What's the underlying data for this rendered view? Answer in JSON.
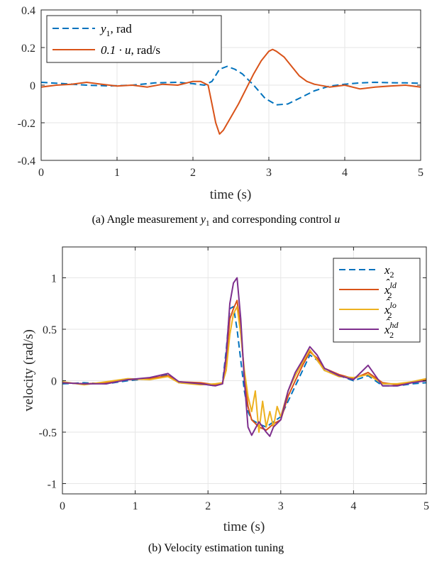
{
  "chart_data": [
    {
      "type": "line",
      "caption_prefix": "(a) Angle measurement ",
      "caption_var1": "y",
      "caption_sub1": "1",
      "caption_mid": " and corresponding control ",
      "caption_var2": "u",
      "xlabel": "time (s)",
      "ylabel": "",
      "xlim": [
        0,
        5
      ],
      "ylim": [
        -0.4,
        0.4
      ],
      "xticks": [
        "0",
        "1",
        "2",
        "3",
        "4",
        "5"
      ],
      "yticks": [
        "-0.4",
        "-0.2",
        "0",
        "0.2",
        "0.4"
      ],
      "grid": true,
      "legend_position": "top-left",
      "series": [
        {
          "legend_main": "y",
          "legend_sub": "1",
          "legend_rest": ", rad",
          "color": "#0072BD",
          "dash": true,
          "x": [
            0,
            0.3,
            0.6,
            0.9,
            1.2,
            1.5,
            1.8,
            2.0,
            2.15,
            2.25,
            2.35,
            2.45,
            2.55,
            2.65,
            2.8,
            2.95,
            3.1,
            3.25,
            3.4,
            3.6,
            3.8,
            4.0,
            4.2,
            4.4,
            4.6,
            4.8,
            5.0
          ],
          "y": [
            0.015,
            0.008,
            0.0,
            -0.004,
            0.0,
            0.012,
            0.015,
            0.008,
            0.0,
            0.02,
            0.085,
            0.1,
            0.085,
            0.06,
            0.0,
            -0.07,
            -0.105,
            -0.1,
            -0.07,
            -0.03,
            -0.005,
            0.005,
            0.012,
            0.015,
            0.013,
            0.012,
            0.01
          ]
        },
        {
          "legend_main": "0.1 · u",
          "legend_sub": "",
          "legend_rest": ", rad/s",
          "color": "#D95319",
          "dash": false,
          "x": [
            0,
            0.2,
            0.4,
            0.6,
            0.8,
            1.0,
            1.2,
            1.4,
            1.6,
            1.8,
            2.0,
            2.1,
            2.2,
            2.25,
            2.3,
            2.35,
            2.4,
            2.5,
            2.6,
            2.7,
            2.8,
            2.9,
            3.0,
            3.05,
            3.1,
            3.2,
            3.3,
            3.4,
            3.5,
            3.6,
            3.8,
            4.0,
            4.2,
            4.4,
            4.6,
            4.8,
            5.0
          ],
          "y": [
            -0.01,
            0.0,
            0.005,
            0.015,
            0.005,
            -0.005,
            0.0,
            -0.01,
            0.005,
            0.0,
            0.02,
            0.02,
            0.0,
            -0.1,
            -0.2,
            -0.26,
            -0.24,
            -0.17,
            -0.1,
            -0.02,
            0.06,
            0.13,
            0.18,
            0.19,
            0.18,
            0.15,
            0.1,
            0.05,
            0.02,
            0.005,
            -0.01,
            0.0,
            -0.02,
            -0.01,
            -0.005,
            0.0,
            -0.01
          ]
        }
      ]
    },
    {
      "type": "line",
      "caption": "(b) Velocity estimation tuning",
      "xlabel": "time (s)",
      "ylabel": "velocity (rad/s)",
      "xlim": [
        0,
        5
      ],
      "ylim": [
        -1.1,
        1.3
      ],
      "xticks": [
        "0",
        "1",
        "2",
        "3",
        "4",
        "5"
      ],
      "yticks": [
        "-1",
        "-0.5",
        "0",
        "0.5",
        "1"
      ],
      "grid": true,
      "legend_position": "top-right",
      "series": [
        {
          "legend_main": "x",
          "legend_sub": "2",
          "legend_sup": "",
          "hat": false,
          "color": "#0072BD",
          "dash": true,
          "x": [
            0,
            0.3,
            0.6,
            0.9,
            1.2,
            1.45,
            1.6,
            1.9,
            2.1,
            2.2,
            2.25,
            2.3,
            2.35,
            2.4,
            2.45,
            2.5,
            2.55,
            2.6,
            2.7,
            2.8,
            2.9,
            3.0,
            3.1,
            3.2,
            3.3,
            3.4,
            3.5,
            3.6,
            3.8,
            4.0,
            4.2,
            4.4,
            4.6,
            4.8,
            5.0
          ],
          "y": [
            -0.03,
            -0.02,
            -0.03,
            0.0,
            0.02,
            0.06,
            -0.02,
            -0.03,
            -0.05,
            -0.02,
            0.3,
            0.7,
            0.72,
            0.5,
            0.2,
            -0.1,
            -0.3,
            -0.38,
            -0.42,
            -0.45,
            -0.4,
            -0.35,
            -0.2,
            -0.05,
            0.1,
            0.25,
            0.2,
            0.1,
            0.05,
            0.0,
            0.05,
            -0.05,
            -0.05,
            -0.03,
            -0.02
          ]
        },
        {
          "legend_main": "x",
          "legend_sub": "2",
          "legend_sup": "ld",
          "hat": true,
          "color": "#D95319",
          "dash": false,
          "x": [
            0,
            0.3,
            0.6,
            0.9,
            1.2,
            1.45,
            1.6,
            1.9,
            2.1,
            2.2,
            2.25,
            2.3,
            2.35,
            2.4,
            2.45,
            2.5,
            2.55,
            2.6,
            2.7,
            2.8,
            2.9,
            3.0,
            3.1,
            3.2,
            3.3,
            3.4,
            3.5,
            3.6,
            3.8,
            4.0,
            4.2,
            4.4,
            4.6,
            4.8,
            5.0
          ],
          "y": [
            -0.02,
            -0.03,
            -0.02,
            0.01,
            0.02,
            0.05,
            -0.01,
            -0.02,
            -0.04,
            -0.03,
            0.2,
            0.6,
            0.7,
            0.78,
            0.5,
            0.05,
            -0.25,
            -0.38,
            -0.45,
            -0.48,
            -0.42,
            -0.38,
            -0.15,
            0.0,
            0.15,
            0.28,
            0.22,
            0.12,
            0.06,
            0.02,
            0.08,
            -0.02,
            -0.04,
            -0.02,
            0.01
          ]
        },
        {
          "legend_main": "x",
          "legend_sub": "2",
          "legend_sup": "lo",
          "hat": true,
          "color": "#EDB120",
          "dash": false,
          "x": [
            0,
            0.3,
            0.6,
            0.9,
            1.2,
            1.45,
            1.6,
            1.9,
            2.1,
            2.2,
            2.25,
            2.3,
            2.35,
            2.4,
            2.45,
            2.5,
            2.55,
            2.6,
            2.65,
            2.7,
            2.75,
            2.8,
            2.85,
            2.9,
            2.95,
            3.0,
            3.1,
            3.2,
            3.3,
            3.4,
            3.5,
            3.6,
            3.8,
            4.0,
            4.2,
            4.4,
            4.6,
            4.8,
            5.0
          ],
          "y": [
            -0.01,
            -0.04,
            -0.01,
            0.02,
            0.01,
            0.04,
            -0.02,
            -0.04,
            -0.03,
            -0.02,
            0.1,
            0.45,
            0.65,
            0.72,
            0.45,
            0.1,
            -0.15,
            -0.3,
            -0.1,
            -0.5,
            -0.2,
            -0.45,
            -0.3,
            -0.45,
            -0.25,
            -0.35,
            -0.1,
            0.05,
            0.18,
            0.3,
            0.2,
            0.1,
            0.04,
            0.03,
            0.06,
            -0.03,
            -0.03,
            -0.01,
            0.02
          ]
        },
        {
          "legend_main": "x",
          "legend_sub": "2",
          "legend_sup": "hd",
          "hat": true,
          "color": "#7E2F8E",
          "dash": false,
          "x": [
            0,
            0.3,
            0.6,
            0.9,
            1.2,
            1.45,
            1.6,
            1.9,
            2.1,
            2.2,
            2.25,
            2.3,
            2.35,
            2.4,
            2.45,
            2.5,
            2.55,
            2.6,
            2.7,
            2.8,
            2.85,
            2.9,
            3.0,
            3.1,
            3.2,
            3.3,
            3.4,
            3.5,
            3.6,
            3.8,
            4.0,
            4.2,
            4.4,
            4.6,
            4.8,
            5.0
          ],
          "y": [
            -0.02,
            -0.03,
            -0.03,
            0.01,
            0.03,
            0.07,
            -0.01,
            -0.03,
            -0.05,
            -0.03,
            0.25,
            0.75,
            0.95,
            1.0,
            0.6,
            0.0,
            -0.45,
            -0.53,
            -0.4,
            -0.5,
            -0.54,
            -0.45,
            -0.38,
            -0.1,
            0.08,
            0.2,
            0.33,
            0.25,
            0.12,
            0.05,
            0.01,
            0.15,
            -0.05,
            -0.05,
            -0.02,
            0.0
          ]
        }
      ]
    }
  ]
}
